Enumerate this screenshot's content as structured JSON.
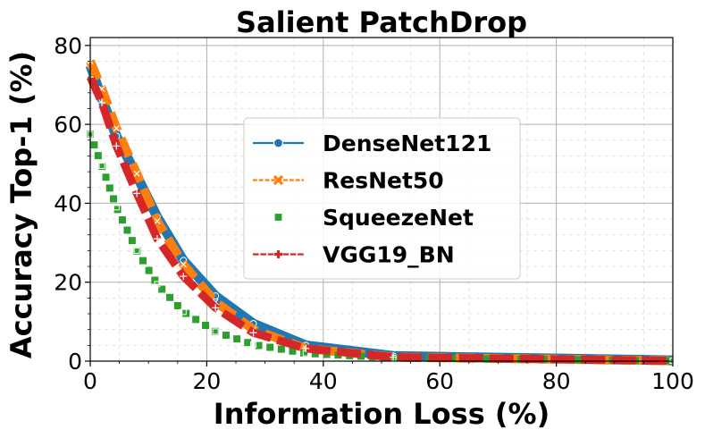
{
  "chart_data": {
    "type": "line",
    "title": "Salient PatchDrop",
    "xlabel": "Information Loss (%)",
    "ylabel": "Accuracy Top-1 (%)",
    "xlim": [
      0,
      100
    ],
    "ylim": [
      0,
      82
    ],
    "xticks": [
      0,
      20,
      40,
      60,
      80,
      100
    ],
    "yticks": [
      0,
      20,
      40,
      60,
      80
    ],
    "grid": true,
    "legend_position": "center",
    "series": [
      {
        "name": "DenseNet121",
        "color": "#1f77b4",
        "linestyle": "solid",
        "marker": "circle",
        "x": [
          0,
          2,
          4.5,
          8,
          11.5,
          16,
          21.5,
          28,
          37,
          52,
          100
        ],
        "y": [
          75,
          66.5,
          57,
          47,
          36.5,
          25.5,
          16.5,
          9.5,
          4,
          1.3,
          0.2
        ]
      },
      {
        "name": "ResNet50",
        "color": "#ff7f0e",
        "linestyle": "dashed",
        "marker": "x",
        "x": [
          0,
          2,
          4.5,
          8,
          11.5,
          16,
          21.5,
          28,
          37,
          52,
          100
        ],
        "y": [
          76,
          69,
          59,
          47.5,
          35.5,
          24.5,
          15,
          8,
          3.2,
          1,
          0.1
        ]
      },
      {
        "name": "SqueezeNet",
        "color": "#2ca02c",
        "linestyle": "dotted",
        "marker": "square",
        "x": [
          0,
          2,
          4.5,
          8,
          11.5,
          16,
          21.5,
          28,
          37,
          52,
          100
        ],
        "y": [
          57.5,
          49.5,
          39,
          28,
          19.5,
          12.5,
          7.5,
          4.2,
          2,
          0.8,
          0.1
        ]
      },
      {
        "name": "VGG19_BN",
        "color": "#d62728",
        "linestyle": "dashdot",
        "marker": "plus",
        "x": [
          0,
          2,
          4.5,
          8,
          11.5,
          16,
          21.5,
          28,
          37,
          52,
          100
        ],
        "y": [
          72,
          65.5,
          54.5,
          42.5,
          31,
          21.5,
          13.5,
          7.2,
          3.2,
          1,
          0.1
        ]
      }
    ]
  }
}
